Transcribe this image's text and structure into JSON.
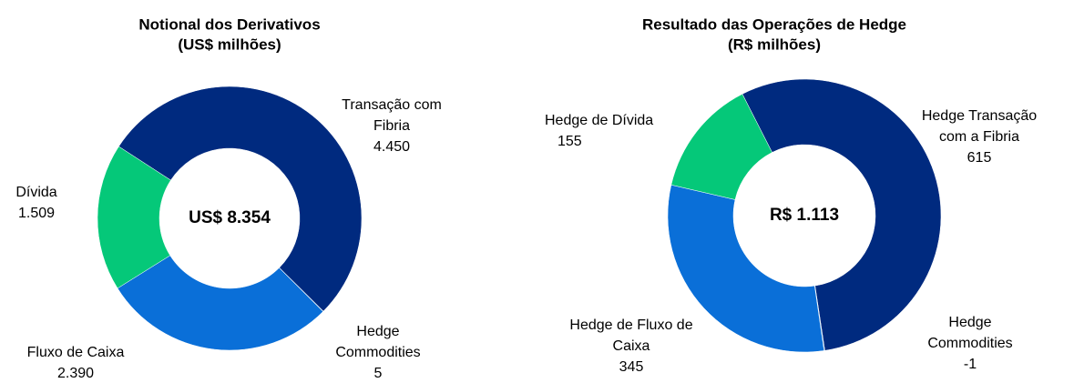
{
  "chart_data": [
    {
      "type": "pie",
      "title": "Notional dos Derivativos",
      "subtitle": "(US$ milhões)",
      "center_label": "US$ 8.354",
      "categories": [
        "Transação com Fibria",
        "Hedge Commodities",
        "Fluxo de Caixa",
        "Dívida"
      ],
      "values": [
        4450,
        5,
        2390,
        1509
      ],
      "value_labels": [
        "4.450",
        "5",
        "2.390",
        "1.509"
      ],
      "colors": [
        "#002a7f",
        "#5b9bd5",
        "#0a6fd8",
        "#05c879"
      ]
    },
    {
      "type": "pie",
      "title": "Resultado das Operações de Hedge",
      "subtitle": "(R$ milhões)",
      "center_label": "R$ 1.113",
      "categories": [
        "Hedge Transação com a Fibria",
        "Hedge Commodities",
        "Hedge de Fluxo de Caixa",
        "Hedge de Dívida"
      ],
      "values": [
        615,
        -1,
        345,
        155
      ],
      "value_labels": [
        "615",
        "-1",
        "345",
        "155"
      ],
      "colors": [
        "#002a7f",
        "#5b9bd5",
        "#0a6fd8",
        "#05c879"
      ]
    }
  ]
}
